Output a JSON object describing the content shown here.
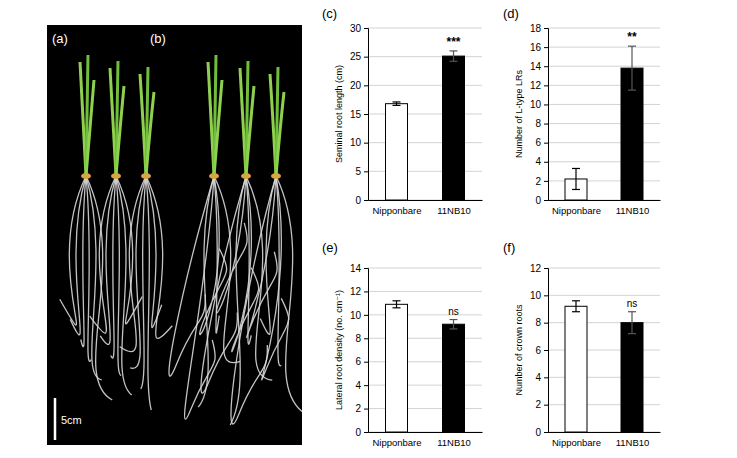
{
  "photo": {
    "panel_labels": [
      "(a)",
      "(b)"
    ],
    "scale_bar": "5cm"
  },
  "chart_data": [
    {
      "type": "bar",
      "panel": "(c)",
      "y_label": "Seminal root length (cm)",
      "categories": [
        "Nipponbare",
        "11NB10"
      ],
      "values": [
        16.8,
        25.1
      ],
      "errors": [
        0.3,
        0.9
      ],
      "significance": [
        null,
        "***"
      ],
      "colors": [
        "#ffffff",
        "#000000"
      ],
      "ylim": [
        0,
        30
      ],
      "yticks": [
        0,
        5,
        10,
        15,
        20,
        25,
        30
      ],
      "grid": true
    },
    {
      "type": "bar",
      "panel": "(d)",
      "y_label": "Number of L-type LRs",
      "categories": [
        "Nipponbare",
        "11NB10"
      ],
      "values": [
        2.2,
        13.8
      ],
      "errors": [
        1.1,
        2.3
      ],
      "significance": [
        null,
        "**"
      ],
      "colors": [
        "#ffffff",
        "#000000"
      ],
      "ylim": [
        0,
        18
      ],
      "yticks": [
        0,
        2,
        4,
        6,
        8,
        10,
        12,
        14,
        16,
        18
      ],
      "grid": true
    },
    {
      "type": "bar",
      "panel": "(e)",
      "y_label": "Lateral root density (no. cm⁻¹)",
      "categories": [
        "Nipponbare",
        "11NB10"
      ],
      "values": [
        10.9,
        9.2
      ],
      "errors": [
        0.3,
        0.4
      ],
      "significance": [
        null,
        "ns"
      ],
      "colors": [
        "#ffffff",
        "#000000"
      ],
      "ylim": [
        0,
        14
      ],
      "yticks": [
        0,
        2,
        4,
        6,
        8,
        10,
        12,
        14
      ],
      "grid": true
    },
    {
      "type": "bar",
      "panel": "(f)",
      "y_label": "Number of crown roots",
      "categories": [
        "Nipponbare",
        "11NB10"
      ],
      "values": [
        9.2,
        8.0
      ],
      "errors": [
        0.4,
        0.8
      ],
      "significance": [
        null,
        "ns"
      ],
      "colors": [
        "#ffffff",
        "#000000"
      ],
      "ylim": [
        0,
        12
      ],
      "yticks": [
        0,
        2,
        4,
        6,
        8,
        10,
        12
      ],
      "grid": true
    }
  ]
}
